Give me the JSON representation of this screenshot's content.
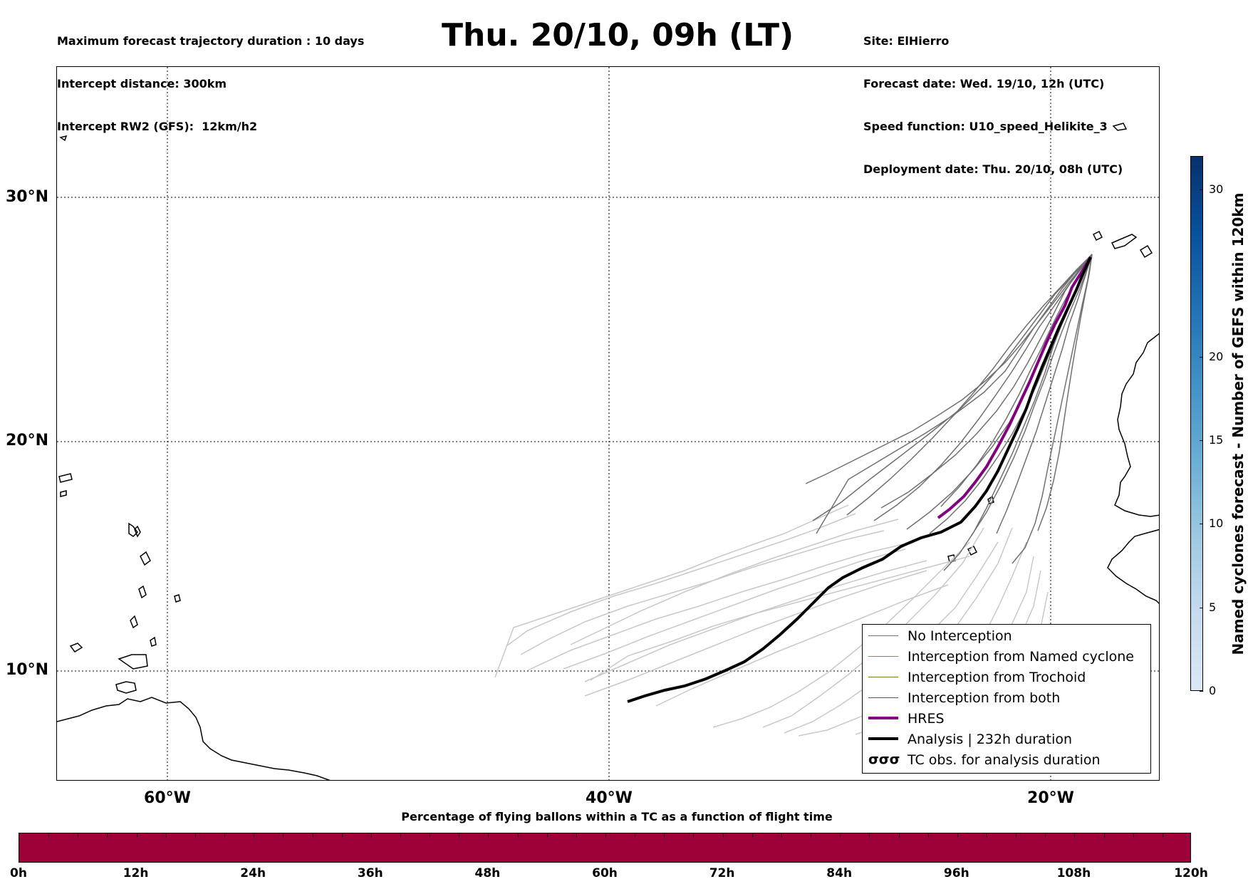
{
  "header": {
    "left_lines": [
      "Maximum forecast trajectory duration : 10 days",
      "Intercept distance: 300km",
      "Intercept RW2 (GFS):  12km/h2"
    ],
    "title": "Thu. 20/10, 09h (LT)",
    "right_lines": [
      "Site: ElHierro",
      "Forecast date: Wed. 19/10, 12h (UTC)",
      "Speed function: U10_speed_Helikite_3",
      "Deployment date: Thu. 20/10, 08h (UTC)"
    ]
  },
  "map": {
    "lat_labels": [
      "30°N",
      "20°N",
      "10°N"
    ],
    "lon_labels": [
      "60°W",
      "40°W",
      "20°W"
    ],
    "extent": {
      "lon_min": -65,
      "lon_max": -15,
      "lat_min": 5.5,
      "lat_max": 34.8
    }
  },
  "legend": {
    "items": [
      {
        "label": "No Interception",
        "color": "#707070",
        "style": "thin"
      },
      {
        "label": "Interception from Named cyclone",
        "color": "#e8601c",
        "style": "thin"
      },
      {
        "label": "Interception from Trochoid",
        "color": "#7a7a1a",
        "style": "thin"
      },
      {
        "label": "Interception from both",
        "color": "#1f7a1f",
        "style": "thin"
      },
      {
        "label": "HRES",
        "color": "#800080",
        "style": "thick"
      },
      {
        "label": "Analysis | 232h duration",
        "color": "#000000",
        "style": "thick"
      },
      {
        "label": "TC obs. for analysis duration",
        "color": "#000000",
        "style": "symbol",
        "symbol": "σσσ"
      }
    ]
  },
  "colorbar_vertical": {
    "label": "Named cyclones forecast - Number of GEFS within 120km",
    "ticks": [
      "0",
      "5",
      "10",
      "15",
      "20",
      "30"
    ],
    "tick_values": [
      0,
      5,
      10,
      15,
      20,
      30
    ],
    "max": 32,
    "colors": [
      "#dbe8f6",
      "#c6dbef",
      "#9ecae1",
      "#6baed6",
      "#4292c6",
      "#2171b5",
      "#08519c",
      "#08306b"
    ]
  },
  "colorbar_horizontal": {
    "title": "Percentage of flying ballons within a TC as a function of flight time",
    "ticks": [
      "0h",
      "12h",
      "24h",
      "36h",
      "48h",
      "60h",
      "72h",
      "84h",
      "96h",
      "108h",
      "120h"
    ],
    "fill_color": "#9e003a"
  }
}
